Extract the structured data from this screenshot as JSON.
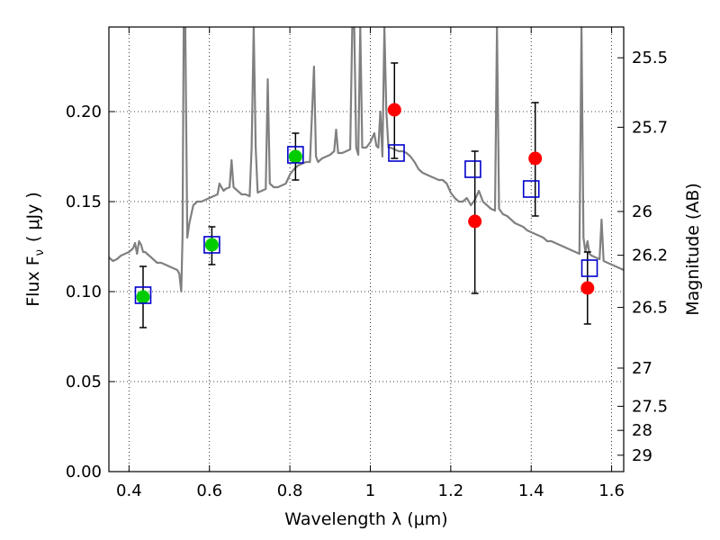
{
  "chart_data": {
    "type": "scatter",
    "xlabel": "Wavelength  λ (μm)",
    "ylabel": "Flux  F",
    "ylabel_sub": "ν",
    "ylabel_unit": "( μJy )",
    "y2label": "Magnitude (AB)",
    "xlim": [
      0.35,
      1.63
    ],
    "ylim": [
      0.0,
      0.247
    ],
    "grid": true,
    "x_ticks": [
      {
        "value": 0.4,
        "label": "0.4"
      },
      {
        "value": 0.6,
        "label": "0.6"
      },
      {
        "value": 0.8,
        "label": "0.8"
      },
      {
        "value": 1.0,
        "label": "1"
      },
      {
        "value": 1.2,
        "label": "1.2"
      },
      {
        "value": 1.4,
        "label": "1.4"
      },
      {
        "value": 1.6,
        "label": "1.6"
      }
    ],
    "y_ticks": [
      {
        "value": 0.0,
        "label": "0.00"
      },
      {
        "value": 0.05,
        "label": "0.05"
      },
      {
        "value": 0.1,
        "label": "0.10"
      },
      {
        "value": 0.15,
        "label": "0.15"
      },
      {
        "value": 0.2,
        "label": "0.20"
      }
    ],
    "y2_ticks": [
      {
        "flux": 0.2299,
        "label": "25.5"
      },
      {
        "flux": 0.1913,
        "label": "25.7"
      },
      {
        "flux": 0.1445,
        "label": "26"
      },
      {
        "flux": 0.1202,
        "label": "26.2"
      },
      {
        "flux": 0.0912,
        "label": "26.5"
      },
      {
        "flux": 0.0575,
        "label": "27"
      },
      {
        "flux": 0.0363,
        "label": "27.5"
      },
      {
        "flux": 0.0229,
        "label": "28"
      },
      {
        "flux": 0.0091,
        "label": "29"
      }
    ],
    "series": [
      {
        "color": "#00cc00",
        "marker": "circle",
        "points": [
          {
            "x": 0.435,
            "y": 0.097,
            "err_low": 0.08,
            "err_high": 0.114
          },
          {
            "x": 0.606,
            "y": 0.126,
            "err_low": 0.115,
            "err_high": 0.136
          },
          {
            "x": 0.814,
            "y": 0.175,
            "err_low": 0.162,
            "err_high": 0.188
          }
        ]
      },
      {
        "color": "#ff0000",
        "marker": "circle",
        "points": [
          {
            "x": 1.06,
            "y": 0.201,
            "err_low": 0.174,
            "err_high": 0.227
          },
          {
            "x": 1.26,
            "y": 0.139,
            "err_low": 0.099,
            "err_high": 0.178
          },
          {
            "x": 1.41,
            "y": 0.174,
            "err_low": 0.142,
            "err_high": 0.205
          },
          {
            "x": 1.54,
            "y": 0.102,
            "err_low": 0.082,
            "err_high": 0.122
          }
        ]
      },
      {
        "color": "#0000cc",
        "marker": "open-square",
        "points": [
          {
            "x": 0.435,
            "y": 0.098
          },
          {
            "x": 0.606,
            "y": 0.126
          },
          {
            "x": 0.814,
            "y": 0.176
          },
          {
            "x": 1.065,
            "y": 0.177
          },
          {
            "x": 1.255,
            "y": 0.168
          },
          {
            "x": 1.4,
            "y": 0.157
          },
          {
            "x": 1.545,
            "y": 0.113
          }
        ]
      }
    ],
    "model_spectrum": {
      "color": "#808080",
      "points": [
        [
          0.35,
          0.119
        ],
        [
          0.36,
          0.117
        ],
        [
          0.37,
          0.118
        ],
        [
          0.38,
          0.12
        ],
        [
          0.39,
          0.121
        ],
        [
          0.4,
          0.122
        ],
        [
          0.41,
          0.124
        ],
        [
          0.415,
          0.127
        ],
        [
          0.42,
          0.121
        ],
        [
          0.425,
          0.128
        ],
        [
          0.43,
          0.126
        ],
        [
          0.435,
          0.122
        ],
        [
          0.44,
          0.122
        ],
        [
          0.45,
          0.12
        ],
        [
          0.46,
          0.118
        ],
        [
          0.47,
          0.116
        ],
        [
          0.48,
          0.116
        ],
        [
          0.49,
          0.115
        ],
        [
          0.5,
          0.114
        ],
        [
          0.51,
          0.113
        ],
        [
          0.52,
          0.112
        ],
        [
          0.525,
          0.11
        ],
        [
          0.53,
          0.1
        ],
        [
          0.533,
          0.13
        ],
        [
          0.536,
          0.247
        ],
        [
          0.54,
          0.247
        ],
        [
          0.545,
          0.13
        ],
        [
          0.55,
          0.138
        ],
        [
          0.56,
          0.148
        ],
        [
          0.57,
          0.15
        ],
        [
          0.58,
          0.15
        ],
        [
          0.59,
          0.151
        ],
        [
          0.6,
          0.152
        ],
        [
          0.61,
          0.153
        ],
        [
          0.62,
          0.154
        ],
        [
          0.625,
          0.16
        ],
        [
          0.63,
          0.158
        ],
        [
          0.635,
          0.156
        ],
        [
          0.64,
          0.157
        ],
        [
          0.65,
          0.158
        ],
        [
          0.655,
          0.173
        ],
        [
          0.66,
          0.158
        ],
        [
          0.67,
          0.156
        ],
        [
          0.68,
          0.154
        ],
        [
          0.69,
          0.154
        ],
        [
          0.7,
          0.153
        ],
        [
          0.705,
          0.18
        ],
        [
          0.71,
          0.247
        ],
        [
          0.715,
          0.18
        ],
        [
          0.72,
          0.155
        ],
        [
          0.73,
          0.156
        ],
        [
          0.74,
          0.157
        ],
        [
          0.745,
          0.218
        ],
        [
          0.75,
          0.16
        ],
        [
          0.76,
          0.158
        ],
        [
          0.77,
          0.158
        ],
        [
          0.78,
          0.159
        ],
        [
          0.79,
          0.16
        ],
        [
          0.8,
          0.165
        ],
        [
          0.81,
          0.168
        ],
        [
          0.82,
          0.17
        ],
        [
          0.83,
          0.171
        ],
        [
          0.84,
          0.172
        ],
        [
          0.85,
          0.172
        ],
        [
          0.86,
          0.225
        ],
        [
          0.865,
          0.175
        ],
        [
          0.87,
          0.172
        ],
        [
          0.88,
          0.174
        ],
        [
          0.89,
          0.175
        ],
        [
          0.9,
          0.176
        ],
        [
          0.91,
          0.178
        ],
        [
          0.915,
          0.19
        ],
        [
          0.92,
          0.177
        ],
        [
          0.93,
          0.177
        ],
        [
          0.94,
          0.178
        ],
        [
          0.95,
          0.179
        ],
        [
          0.955,
          0.247
        ],
        [
          0.96,
          0.247
        ],
        [
          0.965,
          0.18
        ],
        [
          0.97,
          0.176
        ],
        [
          0.975,
          0.247
        ],
        [
          0.98,
          0.18
        ],
        [
          0.99,
          0.18
        ],
        [
          1.0,
          0.183
        ],
        [
          1.01,
          0.188
        ],
        [
          1.015,
          0.181
        ],
        [
          1.02,
          0.18
        ],
        [
          1.025,
          0.2
        ],
        [
          1.03,
          0.175
        ],
        [
          1.035,
          0.247
        ],
        [
          1.04,
          0.2
        ],
        [
          1.045,
          0.18
        ],
        [
          1.05,
          0.18
        ],
        [
          1.06,
          0.179
        ],
        [
          1.07,
          0.178
        ],
        [
          1.08,
          0.178
        ],
        [
          1.09,
          0.177
        ],
        [
          1.1,
          0.175
        ],
        [
          1.11,
          0.172
        ],
        [
          1.12,
          0.168
        ],
        [
          1.13,
          0.166
        ],
        [
          1.14,
          0.165
        ],
        [
          1.15,
          0.164
        ],
        [
          1.16,
          0.163
        ],
        [
          1.17,
          0.162
        ],
        [
          1.18,
          0.162
        ],
        [
          1.19,
          0.16
        ],
        [
          1.2,
          0.155
        ],
        [
          1.21,
          0.152
        ],
        [
          1.22,
          0.15
        ],
        [
          1.23,
          0.15
        ],
        [
          1.24,
          0.152
        ],
        [
          1.25,
          0.148
        ],
        [
          1.26,
          0.151
        ],
        [
          1.27,
          0.156
        ],
        [
          1.28,
          0.15
        ],
        [
          1.29,
          0.148
        ],
        [
          1.3,
          0.146
        ],
        [
          1.31,
          0.145
        ],
        [
          1.315,
          0.247
        ],
        [
          1.32,
          0.146
        ],
        [
          1.33,
          0.143
        ],
        [
          1.34,
          0.142
        ],
        [
          1.35,
          0.14
        ],
        [
          1.36,
          0.138
        ],
        [
          1.37,
          0.137
        ],
        [
          1.38,
          0.136
        ],
        [
          1.39,
          0.134
        ],
        [
          1.4,
          0.133
        ],
        [
          1.41,
          0.132
        ],
        [
          1.42,
          0.131
        ],
        [
          1.43,
          0.13
        ],
        [
          1.44,
          0.128
        ],
        [
          1.45,
          0.128
        ],
        [
          1.46,
          0.127
        ],
        [
          1.47,
          0.126
        ],
        [
          1.48,
          0.125
        ],
        [
          1.49,
          0.124
        ],
        [
          1.5,
          0.123
        ],
        [
          1.51,
          0.122
        ],
        [
          1.52,
          0.121
        ],
        [
          1.525,
          0.247
        ],
        [
          1.53,
          0.13
        ],
        [
          1.535,
          0.122
        ],
        [
          1.54,
          0.128
        ],
        [
          1.545,
          0.121
        ],
        [
          1.55,
          0.12
        ],
        [
          1.56,
          0.119
        ],
        [
          1.57,
          0.118
        ],
        [
          1.575,
          0.14
        ],
        [
          1.58,
          0.117
        ],
        [
          1.59,
          0.116
        ],
        [
          1.6,
          0.115
        ],
        [
          1.61,
          0.114
        ],
        [
          1.62,
          0.113
        ],
        [
          1.63,
          0.112
        ]
      ]
    }
  }
}
